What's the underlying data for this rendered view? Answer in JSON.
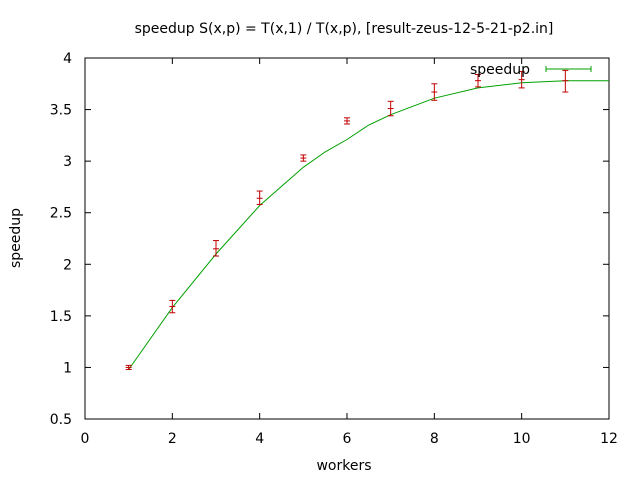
{
  "chart_data": {
    "type": "line",
    "title": "speedup S(x,p) = T(x,1) / T(x,p), [result-zeus-12-5-21-p2.in]",
    "xlabel": "workers",
    "ylabel": "speedup",
    "xlim": [
      0,
      12
    ],
    "ylim": [
      0.5,
      4
    ],
    "x_ticks": [
      "0",
      "2",
      "4",
      "6",
      "8",
      "10",
      "12"
    ],
    "y_ticks": [
      "0.5",
      "1",
      "1.5",
      "2",
      "2.5",
      "3",
      "3.5",
      "4"
    ],
    "grid": false,
    "legend": {
      "position": "top-right",
      "entries": [
        "speedup"
      ]
    },
    "colors": {
      "fit_line": "#00a000",
      "error_bars": "#c00000",
      "axes": "#000000"
    },
    "series": [
      {
        "name": "speedup",
        "style": "errorbars",
        "points": [
          {
            "x": 1,
            "y": 1.0,
            "ylow": 0.98,
            "yhigh": 1.02
          },
          {
            "x": 2,
            "y": 1.59,
            "ylow": 1.53,
            "yhigh": 1.65
          },
          {
            "x": 3,
            "y": 2.15,
            "ylow": 2.08,
            "yhigh": 2.23
          },
          {
            "x": 4,
            "y": 2.64,
            "ylow": 2.58,
            "yhigh": 2.71
          },
          {
            "x": 5,
            "y": 3.03,
            "ylow": 3.0,
            "yhigh": 3.06
          },
          {
            "x": 6,
            "y": 3.39,
            "ylow": 3.36,
            "yhigh": 3.42
          },
          {
            "x": 7,
            "y": 3.51,
            "ylow": 3.44,
            "yhigh": 3.58
          },
          {
            "x": 8,
            "y": 3.67,
            "ylow": 3.59,
            "yhigh": 3.75
          },
          {
            "x": 9,
            "y": 3.78,
            "ylow": 3.72,
            "yhigh": 3.84
          },
          {
            "x": 10,
            "y": 3.79,
            "ylow": 3.71,
            "yhigh": 3.87
          },
          {
            "x": 11,
            "y": 3.78,
            "ylow": 3.67,
            "yhigh": 3.88
          }
        ]
      },
      {
        "name": "",
        "style": "line",
        "x": [
          1,
          2,
          3,
          4,
          5,
          5.5,
          6,
          6.5,
          7,
          8,
          9,
          10,
          10.5,
          11,
          12
        ],
        "y": [
          0.98,
          1.58,
          2.1,
          2.57,
          2.94,
          3.09,
          3.21,
          3.35,
          3.45,
          3.61,
          3.71,
          3.76,
          3.77,
          3.78,
          3.78
        ]
      }
    ]
  }
}
